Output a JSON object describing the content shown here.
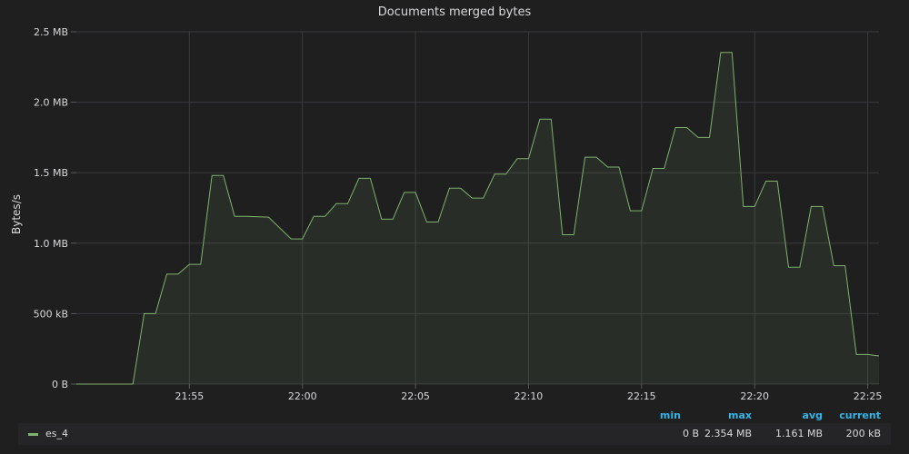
{
  "panel": {
    "title": "Documents merged bytes"
  },
  "legend": {
    "headers": {
      "min": "min",
      "max": "max",
      "avg": "avg",
      "current": "current"
    },
    "series": [
      {
        "name": "es_4",
        "color": "#7eb26d",
        "min": "0 B",
        "max": "2.354 MB",
        "avg": "1.161 MB",
        "current": "200 kB"
      }
    ]
  },
  "chart_data": {
    "type": "area",
    "title": "Documents merged bytes",
    "xlabel": "",
    "ylabel": "Bytes/s",
    "y_unit": "kB",
    "ylim": [
      0,
      2500
    ],
    "yticks": [
      0,
      500,
      1000,
      1500,
      2000,
      2500
    ],
    "ytick_labels": [
      "0 B",
      "500 kB",
      "1.0 MB",
      "1.5 MB",
      "2.0 MB",
      "2.5 MB"
    ],
    "xlim": [
      "21:50:00",
      "22:25:30"
    ],
    "xticks": [
      "21:55",
      "22:00",
      "22:05",
      "22:10",
      "22:15",
      "22:20",
      "22:25"
    ],
    "grid": true,
    "legend_position": "bottom",
    "series": [
      {
        "name": "es_4",
        "color": "#7eb26d",
        "x": [
          "21:50:00",
          "21:52:30",
          "21:53:00",
          "21:53:30",
          "21:54:00",
          "21:54:30",
          "21:55:00",
          "21:55:30",
          "21:56:00",
          "21:56:30",
          "21:57:00",
          "21:57:30",
          "21:58:30",
          "21:59:30",
          "22:00:00",
          "22:00:30",
          "22:01:00",
          "22:01:30",
          "22:02:00",
          "22:02:30",
          "22:03:00",
          "22:03:30",
          "22:04:00",
          "22:04:30",
          "22:05:00",
          "22:05:30",
          "22:06:00",
          "22:06:30",
          "22:07:00",
          "22:07:30",
          "22:08:00",
          "22:08:30",
          "22:09:00",
          "22:09:30",
          "22:10:00",
          "22:10:30",
          "22:11:00",
          "22:11:30",
          "22:12:00",
          "22:12:30",
          "22:13:00",
          "22:13:30",
          "22:14:00",
          "22:14:30",
          "22:15:00",
          "22:15:30",
          "22:16:00",
          "22:16:30",
          "22:17:00",
          "22:17:30",
          "22:18:00",
          "22:18:30",
          "22:19:00",
          "22:19:30",
          "22:20:00",
          "22:20:30",
          "22:21:00",
          "22:21:30",
          "22:22:00",
          "22:22:30",
          "22:23:00",
          "22:23:30",
          "22:24:00",
          "22:24:30",
          "22:25:00",
          "22:25:30"
        ],
        "values": [
          0,
          0,
          500,
          500,
          780,
          780,
          850,
          850,
          1480,
          1480,
          1190,
          1190,
          1185,
          1030,
          1030,
          1190,
          1190,
          1280,
          1280,
          1460,
          1460,
          1170,
          1170,
          1360,
          1360,
          1150,
          1150,
          1390,
          1390,
          1320,
          1320,
          1490,
          1490,
          1600,
          1600,
          1880,
          1880,
          1060,
          1060,
          1610,
          1610,
          1540,
          1540,
          1230,
          1230,
          1530,
          1530,
          1820,
          1820,
          1750,
          1750,
          2354,
          2354,
          1260,
          1260,
          1440,
          1440,
          830,
          830,
          1260,
          1260,
          840,
          840,
          210,
          210,
          200
        ]
      }
    ]
  }
}
